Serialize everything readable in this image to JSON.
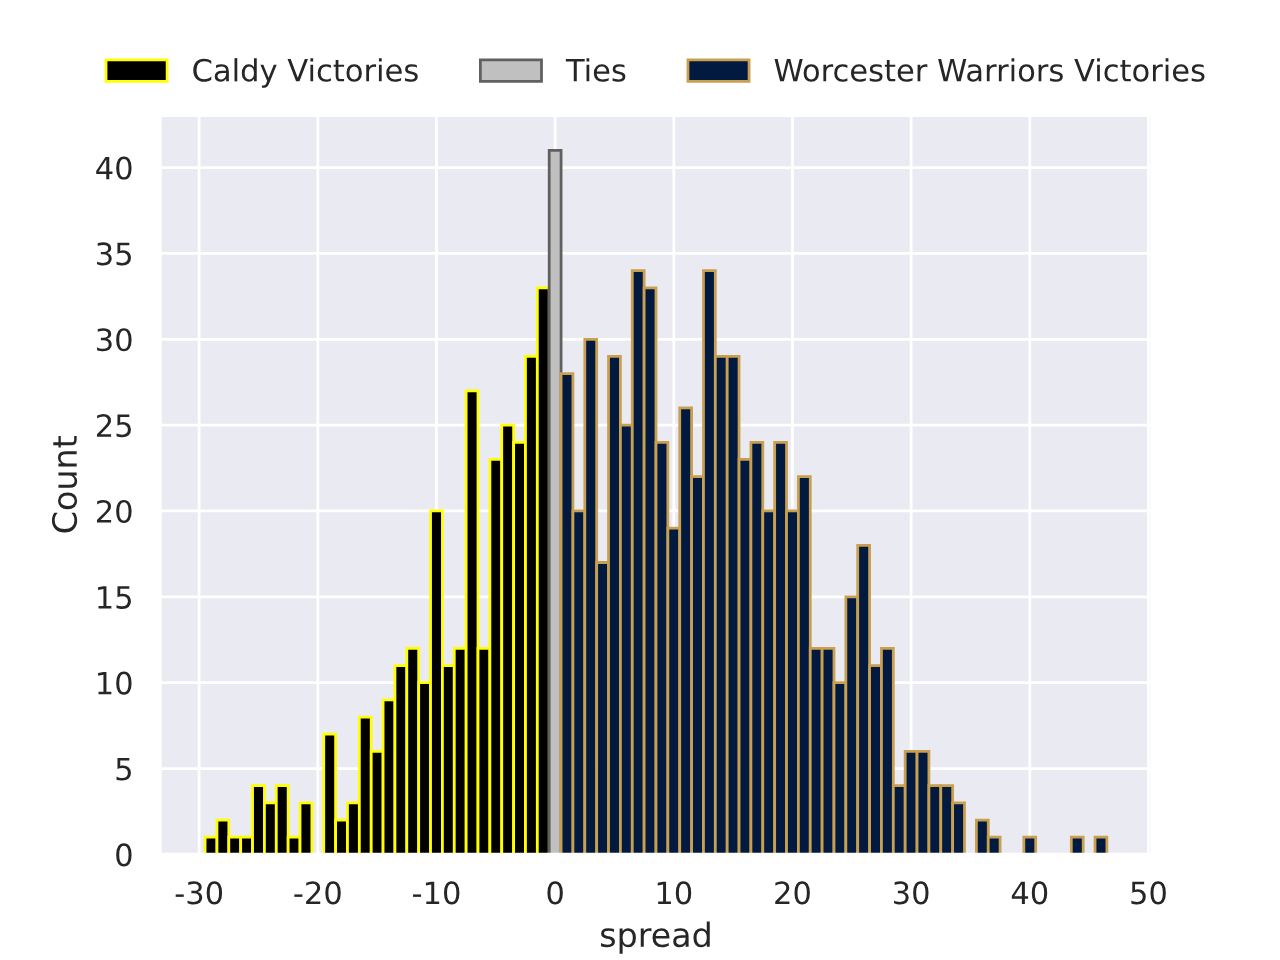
{
  "chart_data": {
    "type": "histogram",
    "xlabel": "spread",
    "ylabel": "Count",
    "bins": [
      -29.5,
      -28.5,
      -27.5,
      -26.5,
      -25.5,
      -24.5,
      -23.5,
      -22.5,
      -21.5,
      -20.5,
      -19.5,
      -18.5,
      -17.5,
      -16.5,
      -15.5,
      -14.5,
      -13.5,
      -12.5,
      -11.5,
      -10.5,
      -9.5,
      -8.5,
      -7.5,
      -6.5,
      -5.5,
      -4.5,
      -3.5,
      -2.5,
      -1.5,
      -0.5,
      0.5,
      1.5,
      2.5,
      3.5,
      4.5,
      5.5,
      6.5,
      7.5,
      8.5,
      9.5,
      10.5,
      11.5,
      12.5,
      13.5,
      14.5,
      15.5,
      16.5,
      17.5,
      18.5,
      19.5,
      20.5,
      21.5,
      22.5,
      23.5,
      24.5,
      25.5,
      26.5,
      27.5,
      28.5,
      29.5,
      30.5,
      31.5,
      32.5,
      33.5,
      34.5,
      35.5,
      36.5,
      37.5,
      38.5,
      39.5,
      40.5,
      41.5,
      42.5,
      43.5,
      44.5,
      45.5,
      46.5
    ],
    "series": [
      {
        "name": "Caldy Victories",
        "color": "#000000",
        "values": [
          1,
          2,
          1,
          1,
          4,
          3,
          4,
          1,
          3,
          0,
          7,
          2,
          3,
          8,
          6,
          9,
          11,
          12,
          10,
          20,
          11,
          12,
          27,
          12,
          23,
          25,
          24,
          29,
          33,
          0,
          0,
          0,
          0,
          0,
          0,
          0,
          0,
          0,
          0,
          0,
          0,
          0,
          0,
          0,
          0,
          0,
          0,
          0,
          0,
          0,
          0,
          0,
          0,
          0,
          0,
          0,
          0,
          0,
          0,
          0,
          0,
          0,
          0,
          0,
          0,
          0,
          0,
          0,
          0,
          0,
          0,
          0,
          0,
          0,
          0,
          0
        ]
      },
      {
        "name": "Ties",
        "color": "#c0c0c0",
        "values": [
          0,
          0,
          0,
          0,
          0,
          0,
          0,
          0,
          0,
          0,
          0,
          0,
          0,
          0,
          0,
          0,
          0,
          0,
          0,
          0,
          0,
          0,
          0,
          0,
          0,
          0,
          0,
          0,
          0,
          41,
          0,
          0,
          0,
          0,
          0,
          0,
          0,
          0,
          0,
          0,
          0,
          0,
          0,
          0,
          0,
          0,
          0,
          0,
          0,
          0,
          0,
          0,
          0,
          0,
          0,
          0,
          0,
          0,
          0,
          0,
          0,
          0,
          0,
          0,
          0,
          0,
          0,
          0,
          0,
          0,
          0,
          0,
          0,
          0,
          0,
          0
        ]
      },
      {
        "name": "Worcester Warriors Victories",
        "color": "#031a40",
        "values": [
          0,
          0,
          0,
          0,
          0,
          0,
          0,
          0,
          0,
          0,
          0,
          0,
          0,
          0,
          0,
          0,
          0,
          0,
          0,
          0,
          0,
          0,
          0,
          0,
          0,
          0,
          0,
          0,
          0,
          0,
          28,
          20,
          30,
          17,
          29,
          25,
          34,
          33,
          24,
          19,
          26,
          22,
          34,
          29,
          29,
          23,
          24,
          20,
          24,
          20,
          22,
          12,
          12,
          10,
          15,
          18,
          11,
          12,
          4,
          6,
          6,
          4,
          4,
          3,
          0,
          2,
          1,
          0,
          0,
          1,
          0,
          0,
          0,
          1,
          0,
          1
        ]
      }
    ],
    "xlim": [
      -33.3,
      50.3
    ],
    "xticks": [
      -30,
      -20,
      -10,
      0,
      10,
      20,
      30,
      40,
      50
    ],
    "ylim": [
      0,
      43.05
    ],
    "yticks": [
      0,
      5,
      10,
      15,
      20,
      25,
      30,
      35,
      40
    ],
    "grid": true,
    "legend": "top"
  }
}
